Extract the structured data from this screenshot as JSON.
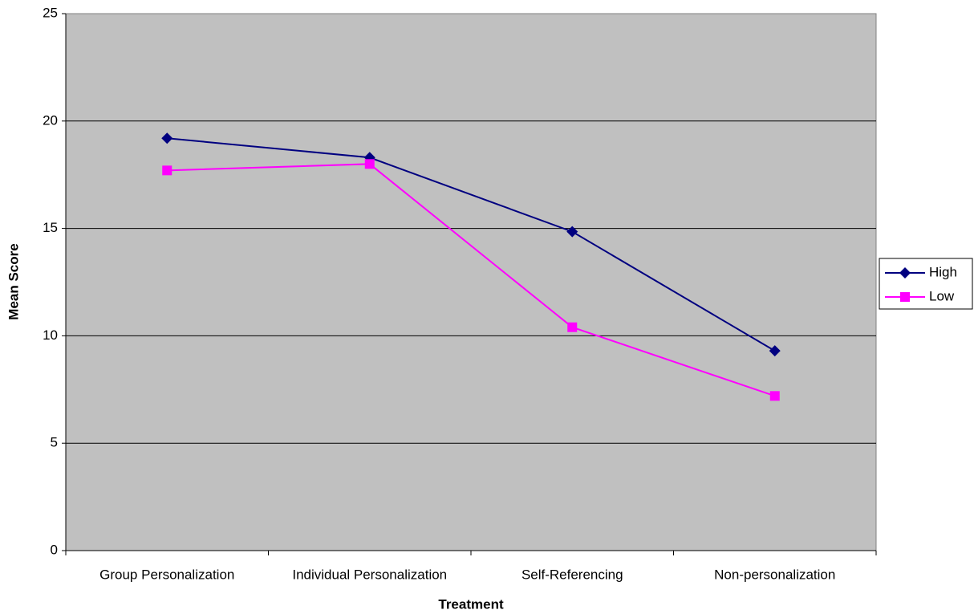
{
  "chart_data": {
    "type": "line",
    "x_label": "Treatment",
    "y_label": "Mean Score",
    "categories": [
      "Group Personalization",
      "Individual Personalization",
      "Self-Referencing",
      "Non-personalization"
    ],
    "series": [
      {
        "name": "High",
        "color": "#000080",
        "marker": "diamond",
        "values": [
          19.2,
          18.3,
          14.85,
          9.3
        ]
      },
      {
        "name": "Low",
        "color": "#ff00ff",
        "marker": "square",
        "values": [
          17.7,
          18.0,
          10.4,
          7.2
        ]
      }
    ],
    "ylim": [
      0,
      25
    ],
    "yticks": [
      0,
      5,
      10,
      15,
      20,
      25
    ],
    "grid": true,
    "legend": "right"
  }
}
